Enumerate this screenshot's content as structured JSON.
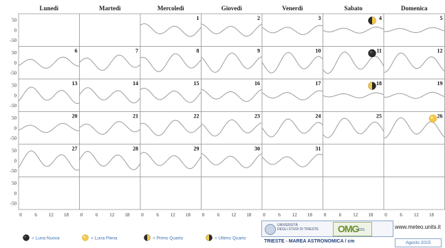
{
  "weekdays": [
    "Lunedì",
    "Martedì",
    "Mercoledì",
    "Giovedì",
    "Venerdì",
    "Sabato",
    "Domenica"
  ],
  "yticks": [
    "50",
    "0",
    "-50"
  ],
  "xticks": [
    "0",
    "6",
    "12",
    "18"
  ],
  "first_weekday_index": 2,
  "days_in_month": 31,
  "moon_phases": [
    {
      "day": 4,
      "phase": "first-quarter"
    },
    {
      "day": 11,
      "phase": "new-moon"
    },
    {
      "day": 18,
      "phase": "last-quarter"
    },
    {
      "day": 26,
      "phase": "full-moon"
    }
  ],
  "legend": [
    {
      "label": "= Luna Nuova",
      "icon": "new-moon-icon"
    },
    {
      "label": "= Luna Piena",
      "icon": "full-moon-icon"
    },
    {
      "label": "= Primo Quarto",
      "icon": "first-quarter-icon"
    },
    {
      "label": "= Ultimo Quarto",
      "icon": "last-quarter-icon"
    }
  ],
  "footer": {
    "university_line1": "UNIVERSITÀ",
    "university_line2": "DEGLI STUDI DI TRIESTE",
    "brand": "OMG",
    "brand_suffix": "tss",
    "website": "www.meteo.units.it",
    "title": "TRIESTE - MAREA ASTRONOMICA / cm",
    "month": "Agosto 2015"
  },
  "chart_data": {
    "type": "line",
    "title": "TRIESTE - MAREA ASTRONOMICA / cm",
    "period": "Agosto 2015",
    "ylabel": "cm",
    "ylim": [
      -70,
      70
    ],
    "xlim": [
      0,
      24
    ],
    "x_ticks": [
      0,
      6,
      12,
      18
    ],
    "y_ticks": [
      50,
      0,
      -50
    ],
    "grid": "monthly calendar, one panel per day",
    "series_description": "hourly astronomical tide, semidiurnal",
    "daily_amplitude_cm": {
      "1": 25,
      "2": 24,
      "3": 18,
      "4": 12,
      "5": 10,
      "6": 22,
      "7": 30,
      "8": 35,
      "9": 38,
      "10": 40,
      "11": 42,
      "12": 38,
      "13": 32,
      "14": 30,
      "15": 28,
      "16": 24,
      "17": 18,
      "18": 10,
      "19": 12,
      "20": 18,
      "21": 25,
      "22": 30,
      "23": 32,
      "24": 35,
      "25": 38,
      "26": 40,
      "27": 38,
      "28": 36,
      "29": 32,
      "30": 28,
      "31": 25
    }
  }
}
